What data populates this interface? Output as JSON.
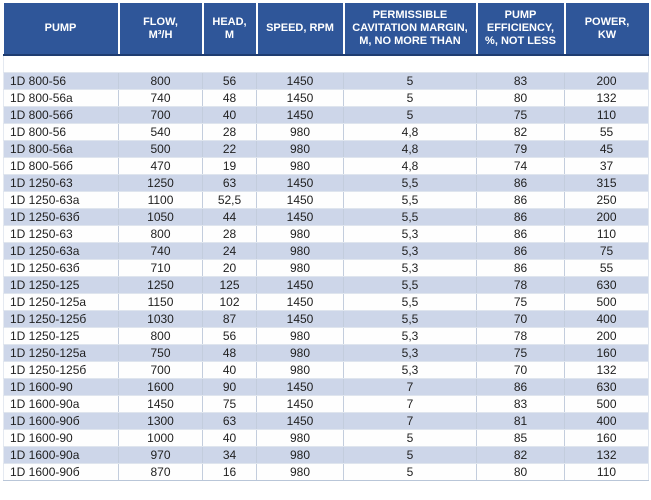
{
  "chart_data": {
    "type": "table",
    "title": "Pump specifications table",
    "columns": [
      "PUMP",
      "FLOW,\nM³/H",
      "HEAD,\nM",
      "SPEED, RPM",
      "PERMISSIBLE\nCAVITATION MARGIN,\nM, NO MORE THAN",
      "PUMP\nEFFICIENCY,\n%, NOT LESS",
      "POWER,\nKW"
    ],
    "rows": [
      [
        "1D 800-56",
        "800",
        "56",
        "1450",
        "5",
        "83",
        "200"
      ],
      [
        "1D 800-56a",
        "740",
        "48",
        "1450",
        "5",
        "80",
        "132"
      ],
      [
        "1D 800-56б",
        "700",
        "40",
        "1450",
        "5",
        "75",
        "110"
      ],
      [
        "1D 800-56",
        "540",
        "28",
        "980",
        "4,8",
        "82",
        "55"
      ],
      [
        "1D 800-56a",
        "500",
        "22",
        "980",
        "4,8",
        "79",
        "45"
      ],
      [
        "1D 800-56б",
        "470",
        "19",
        "980",
        "4,8",
        "74",
        "37"
      ],
      [
        "1D 1250-63",
        "1250",
        "63",
        "1450",
        "5,5",
        "86",
        "315"
      ],
      [
        "1D 1250-63a",
        "1100",
        "52,5",
        "1450",
        "5,5",
        "86",
        "250"
      ],
      [
        "1D 1250-63б",
        "1050",
        "44",
        "1450",
        "5,5",
        "86",
        "200"
      ],
      [
        "1D 1250-63",
        "800",
        "28",
        "980",
        "5,3",
        "86",
        "110"
      ],
      [
        "1D 1250-63a",
        "740",
        "24",
        "980",
        "5,3",
        "86",
        "75"
      ],
      [
        "1D 1250-63б",
        "710",
        "20",
        "980",
        "5,3",
        "86",
        "55"
      ],
      [
        "1D 1250-125",
        "1250",
        "125",
        "1450",
        "5,5",
        "78",
        "630"
      ],
      [
        "1D 1250-125a",
        "1150",
        "102",
        "1450",
        "5,5",
        "75",
        "500"
      ],
      [
        "1D 1250-125б",
        "1030",
        "87",
        "1450",
        "5,5",
        "70",
        "400"
      ],
      [
        "1D 1250-125",
        "800",
        "56",
        "980",
        "5,3",
        "78",
        "200"
      ],
      [
        "1D 1250-125a",
        "750",
        "48",
        "980",
        "5,3",
        "75",
        "160"
      ],
      [
        "1D 1250-125б",
        "700",
        "40",
        "980",
        "5,3",
        "70",
        "132"
      ],
      [
        "1D 1600-90",
        "1600",
        "90",
        "1450",
        "7",
        "86",
        "630"
      ],
      [
        "1D 1600-90a",
        "1450",
        "75",
        "1450",
        "7",
        "83",
        "500"
      ],
      [
        "1D 1600-90б",
        "1300",
        "63",
        "1450",
        "7",
        "81",
        "400"
      ],
      [
        "1D 1600-90",
        "1000",
        "40",
        "980",
        "5",
        "85",
        "160"
      ],
      [
        "1D 1600-90a",
        "970",
        "34",
        "980",
        "5",
        "82",
        "132"
      ],
      [
        "1D 1600-90б",
        "870",
        "16",
        "980",
        "5",
        "80",
        "110"
      ]
    ],
    "layout": {
      "first_row_striped": true,
      "column_alignment": [
        "left",
        "center",
        "center",
        "center",
        "center",
        "center",
        "center"
      ]
    }
  },
  "colors": {
    "header_bg": "#2f5699",
    "header_text": "#ffffff",
    "header_underline": "#1f3c70",
    "stripe_row_bg": "#cdd6e9",
    "plain_row_bg": "#fefefe",
    "grid_line": "#c3cddd",
    "body_text": "#1f1f1f"
  }
}
